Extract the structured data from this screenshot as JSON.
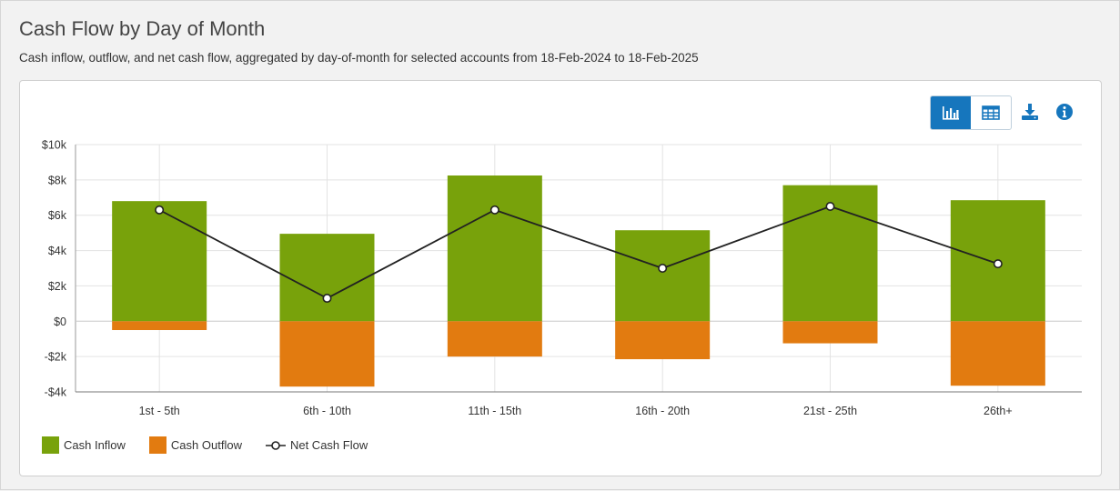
{
  "header": {
    "title": "Cash Flow by Day of Month",
    "subtitle": "Cash inflow, outflow, and net cash flow, aggregated by day-of-month for selected accounts from 18-Feb-2024 to 18-Feb-2025"
  },
  "toolbar": {
    "chart_view_icon": "bar-chart-icon",
    "table_view_icon": "table-icon",
    "download_icon": "download-icon",
    "info_icon": "info-icon",
    "accent_color": "#1676bd"
  },
  "colors": {
    "inflow": "#78a20b",
    "outflow": "#e27b10",
    "net": "#222222"
  },
  "chart_data": {
    "type": "bar",
    "categories": [
      "1st - 5th",
      "6th - 10th",
      "11th - 15th",
      "16th - 20th",
      "21st - 25th",
      "26th+"
    ],
    "series": [
      {
        "name": "Cash Inflow",
        "type": "bar",
        "values": [
          6800,
          4950,
          8250,
          5150,
          7700,
          6850
        ]
      },
      {
        "name": "Cash Outflow",
        "type": "bar",
        "values": [
          -500,
          -3700,
          -2000,
          -2150,
          -1250,
          -3650
        ]
      },
      {
        "name": "Net Cash Flow",
        "type": "line",
        "values": [
          6300,
          1300,
          6300,
          3000,
          6500,
          3250
        ]
      }
    ],
    "ylim": [
      -4000,
      10000
    ],
    "yticks": [
      10000,
      8000,
      6000,
      4000,
      2000,
      0,
      -2000,
      -4000
    ],
    "ytick_labels": [
      "$10k",
      "$8k",
      "$6k",
      "$4k",
      "$2k",
      "$0",
      "-$2k",
      "-$4k"
    ],
    "grid": true,
    "legend": "bottom-left"
  }
}
